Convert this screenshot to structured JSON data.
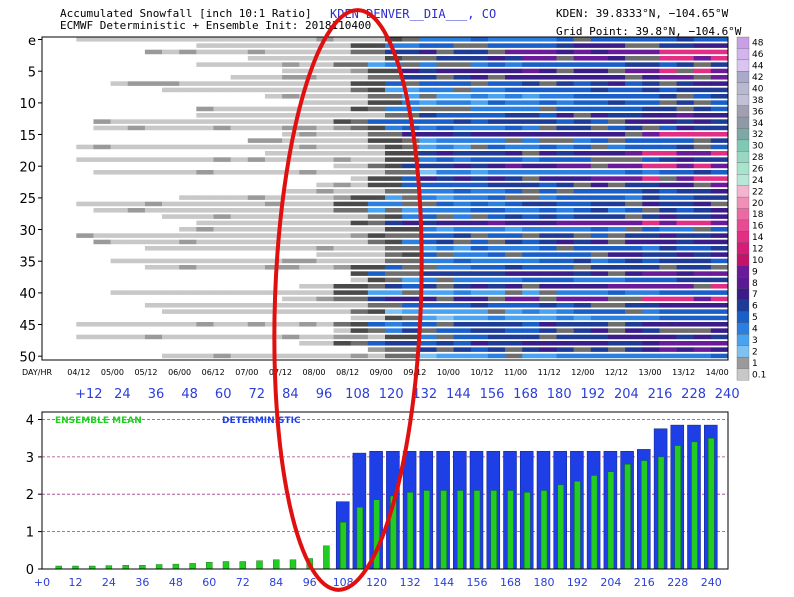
{
  "header": {
    "title_line1": "Accumulated Snowfall [inch 10:1 Ratio]",
    "title_line2": "ECMWF Deterministic + Ensemble Init: 2018110400",
    "station": "KDEN DENVER__DIA___, CO",
    "coord_line1": "KDEN: 39.8333°N, −104.65°W",
    "coord_line2": "Grid Point: 39.8°N, −104.6°W"
  },
  "plume": {
    "row_labels": [
      "e",
      "5",
      "10",
      "15",
      "20",
      "25",
      "30",
      "35",
      "40",
      "45",
      "50"
    ],
    "date_header": "DAY/HR",
    "dates": [
      "04/12",
      "05/00",
      "05/12",
      "06/00",
      "06/12",
      "07/00",
      "07/12",
      "08/00",
      "08/12",
      "09/00",
      "09/12",
      "10/00",
      "10/12",
      "11/00",
      "11/12",
      "12/00",
      "12/12",
      "13/00",
      "13/12",
      "14/00"
    ],
    "hours": [
      "+12",
      "24",
      "36",
      "48",
      "60",
      "72",
      "84",
      "96",
      "108",
      "120",
      "132",
      "144",
      "156",
      "168",
      "180",
      "192",
      "204",
      "216",
      "228",
      "240"
    ]
  },
  "colorbar": {
    "labels": [
      "48",
      "46",
      "44",
      "42",
      "40",
      "38",
      "36",
      "34",
      "32",
      "30",
      "28",
      "26",
      "24",
      "22",
      "20",
      "18",
      "16",
      "14",
      "12",
      "10",
      "9",
      "8",
      "7",
      "6",
      "5",
      "4",
      "3",
      "2",
      "1",
      "0.1"
    ],
    "colors": [
      "#c9a0e6",
      "#d2b4ee",
      "#dac4f2",
      "#a9a9c9",
      "#b8b8d0",
      "#c0c0d8",
      "#a0a0b0",
      "#8f9aa6",
      "#7fa7a6",
      "#7fc9b4",
      "#9ad7c2",
      "#a8e4cc",
      "#b7e7d6",
      "#f3b5cf",
      "#f08fb8",
      "#ec6aa4",
      "#e64b94",
      "#e32e85",
      "#d81b74",
      "#c4146a",
      "#6a1b9a",
      "#5b1a94",
      "#3b1d8a",
      "#1e3c96",
      "#1a5fc8",
      "#2b7fe0",
      "#4aa3f0",
      "#7fc2f2",
      "#9a9a9a",
      "#c8c8c8"
    ]
  },
  "labels": {
    "ensemble_mean": "ENSEMBLE MEAN",
    "deterministic": "DETERMINISTIC"
  },
  "chart_data": [
    {
      "type": "heatmap",
      "title": "Accumulated Snowfall [inch 10:1 Ratio]",
      "x": [
        "+12",
        "24",
        "36",
        "48",
        "60",
        "72",
        "84",
        "96",
        "108",
        "120",
        "132",
        "144",
        "156",
        "168",
        "180",
        "192",
        "204",
        "216",
        "228",
        "240"
      ],
      "y_range": [
        0,
        51
      ],
      "description_note": ""
    },
    {
      "type": "bar",
      "x": [
        "+0",
        "12",
        "24",
        "36",
        "48",
        "60",
        "72",
        "84",
        "96",
        "108",
        "120",
        "132",
        "144",
        "156",
        "168",
        "180",
        "192",
        "204",
        "216",
        "228",
        "240"
      ],
      "yticks": [
        "0",
        "1",
        "2",
        "3",
        "4"
      ],
      "ylim": [
        0,
        4.2
      ],
      "series": [
        {
          "name": "DETERMINISTIC",
          "color": "#1f3fe6",
          "x": [
            108,
            114,
            120,
            126,
            132,
            138,
            144,
            150,
            156,
            162,
            168,
            174,
            180,
            186,
            192,
            198,
            204,
            210,
            216,
            222,
            228,
            234,
            240
          ],
          "values": [
            1.8,
            3.1,
            3.15,
            3.15,
            3.15,
            3.15,
            3.15,
            3.15,
            3.15,
            3.15,
            3.15,
            3.15,
            3.15,
            3.15,
            3.15,
            3.15,
            3.15,
            3.15,
            3.2,
            3.75,
            3.85,
            3.85,
            3.85
          ]
        },
        {
          "name": "ENSEMBLE MEAN",
          "color": "#22cc22",
          "x": [
            6,
            12,
            18,
            24,
            30,
            36,
            42,
            48,
            54,
            60,
            66,
            72,
            78,
            84,
            90,
            96,
            102,
            108,
            114,
            120,
            126,
            132,
            138,
            144,
            150,
            156,
            162,
            168,
            174,
            180,
            186,
            192,
            198,
            204,
            210,
            216,
            222,
            228,
            234,
            240
          ],
          "values": [
            0.08,
            0.08,
            0.08,
            0.09,
            0.1,
            0.1,
            0.12,
            0.13,
            0.15,
            0.18,
            0.2,
            0.2,
            0.22,
            0.25,
            0.25,
            0.28,
            0.62,
            1.25,
            1.65,
            1.85,
            1.95,
            2.05,
            2.1,
            2.1,
            2.1,
            2.1,
            2.1,
            2.1,
            2.05,
            2.1,
            2.25,
            2.35,
            2.5,
            2.6,
            2.8,
            2.9,
            3.0,
            3.3,
            3.4,
            3.5
          ]
        }
      ]
    }
  ]
}
